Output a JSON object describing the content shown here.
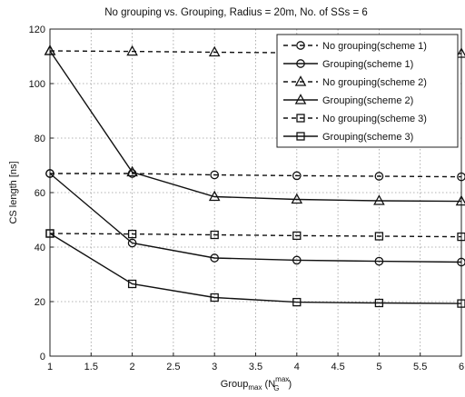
{
  "chart_data": {
    "type": "line",
    "title": "No grouping vs. Grouping, Radius = 20m, No. of SSs = 6",
    "xlabel": {
      "base": "Group",
      "sub": "max",
      "open": " (N",
      "sup2": "max",
      "sub2": "G",
      "close": ")"
    },
    "ylabel": "CS length [ns]",
    "xlim": [
      1,
      6
    ],
    "ylim": [
      0,
      120
    ],
    "xticks": [
      1,
      1.5,
      2,
      2.5,
      3,
      3.5,
      4,
      4.5,
      5,
      5.5,
      6
    ],
    "xtick_labels": [
      "1",
      "1.5",
      "2",
      "2.5",
      "3",
      "3.5",
      "4",
      "4.5",
      "5",
      "5.5",
      "6"
    ],
    "yticks": [
      0,
      20,
      40,
      60,
      80,
      100,
      120
    ],
    "ytick_labels": [
      "0",
      "20",
      "40",
      "60",
      "80",
      "100",
      "120"
    ],
    "grid": true,
    "legend_position": "top-right",
    "x": [
      1,
      2,
      3,
      4,
      5,
      6
    ],
    "series": [
      {
        "name": "No grouping(scheme 1)",
        "marker": "circle",
        "dash": true,
        "values": [
          67,
          67,
          66.5,
          66.2,
          66,
          65.8
        ]
      },
      {
        "name": "Grouping(scheme 1)",
        "marker": "circle",
        "dash": false,
        "values": [
          67,
          41.5,
          36,
          35.2,
          34.8,
          34.5
        ]
      },
      {
        "name": "No grouping(scheme 2)",
        "marker": "triangle",
        "dash": true,
        "values": [
          112,
          111.8,
          111.5,
          111.3,
          111.2,
          111
        ]
      },
      {
        "name": "Grouping(scheme 2)",
        "marker": "triangle",
        "dash": false,
        "values": [
          112,
          67.5,
          58.5,
          57.5,
          57,
          56.8
        ]
      },
      {
        "name": "No grouping(scheme 3)",
        "marker": "square",
        "dash": true,
        "values": [
          45,
          44.8,
          44.5,
          44.2,
          44,
          43.8
        ]
      },
      {
        "name": "Grouping(scheme 3)",
        "marker": "square",
        "dash": false,
        "values": [
          45,
          26.5,
          21.5,
          19.8,
          19.5,
          19.3
        ]
      }
    ]
  }
}
